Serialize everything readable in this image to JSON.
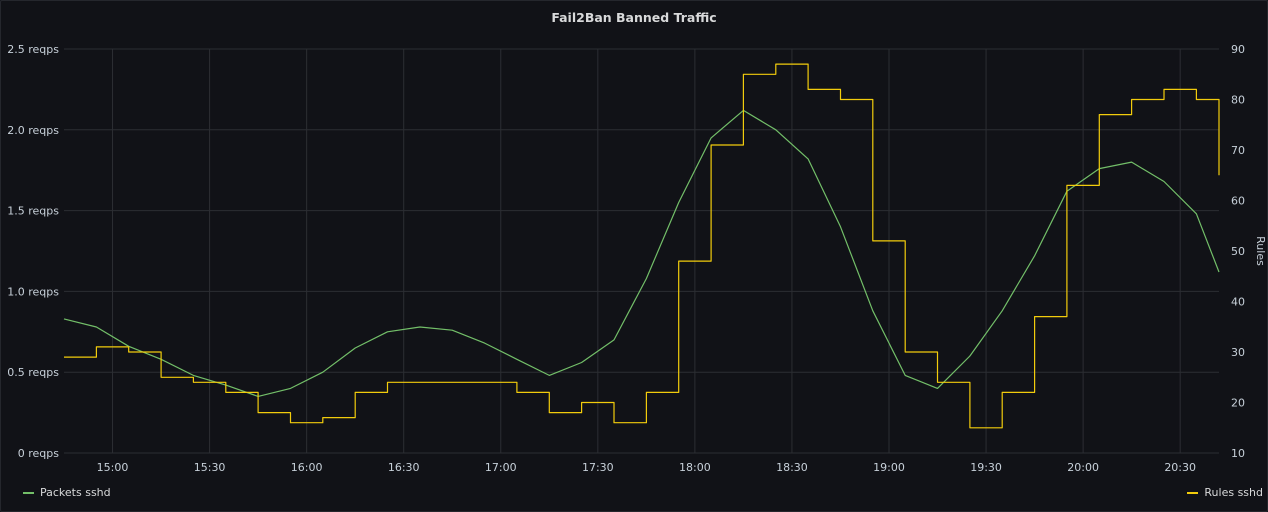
{
  "panel": {
    "title": "Fail2Ban Banned Traffic"
  },
  "chart_data": {
    "type": "line",
    "title": "Fail2Ban Banned Traffic",
    "xlabel": "",
    "ylabel_left": "",
    "ylabel_right": "Rules",
    "x_ticks": [
      "15:00",
      "15:30",
      "16:00",
      "16:30",
      "17:00",
      "17:30",
      "18:00",
      "18:30",
      "19:00",
      "19:30",
      "20:00",
      "20:30"
    ],
    "x_range": [
      "14:45",
      "20:42"
    ],
    "y_left_ticks": [
      "0 reqps",
      "0.5 reqps",
      "1.0 reqps",
      "1.5 reqps",
      "2.0 reqps",
      "2.5 reqps"
    ],
    "y_left_range": [
      0,
      2.5
    ],
    "y_right_ticks": [
      "10",
      "20",
      "30",
      "40",
      "50",
      "60",
      "70",
      "80",
      "90"
    ],
    "y_right_range": [
      10,
      90
    ],
    "grid": true,
    "legend": "bottom",
    "series": [
      {
        "name": "Packets sshd",
        "axis": "left",
        "color": "#73bf69",
        "x": [
          "14:45",
          "14:55",
          "15:05",
          "15:15",
          "15:25",
          "15:35",
          "15:45",
          "15:55",
          "16:05",
          "16:15",
          "16:25",
          "16:35",
          "16:45",
          "16:55",
          "17:05",
          "17:15",
          "17:25",
          "17:35",
          "17:45",
          "17:55",
          "18:05",
          "18:15",
          "18:25",
          "18:35",
          "18:45",
          "18:55",
          "19:05",
          "19:15",
          "19:25",
          "19:35",
          "19:45",
          "19:55",
          "20:05",
          "20:15",
          "20:25",
          "20:35",
          "20:42"
        ],
        "values": [
          0.83,
          0.78,
          0.66,
          0.58,
          0.48,
          0.42,
          0.35,
          0.4,
          0.5,
          0.65,
          0.75,
          0.78,
          0.76,
          0.68,
          0.58,
          0.48,
          0.56,
          0.7,
          1.08,
          1.55,
          1.95,
          2.12,
          2.0,
          1.82,
          1.4,
          0.88,
          0.48,
          0.4,
          0.6,
          0.88,
          1.22,
          1.62,
          1.76,
          1.8,
          1.68,
          1.48,
          1.12
        ]
      },
      {
        "name": "Rules sshd",
        "axis": "right",
        "color": "#f2cc0c",
        "x": [
          "14:45",
          "14:55",
          "15:05",
          "15:15",
          "15:25",
          "15:35",
          "15:45",
          "15:55",
          "16:05",
          "16:15",
          "16:25",
          "16:35",
          "16:45",
          "16:55",
          "17:05",
          "17:15",
          "17:25",
          "17:35",
          "17:45",
          "17:55",
          "18:05",
          "18:15",
          "18:25",
          "18:35",
          "18:45",
          "18:55",
          "19:05",
          "19:15",
          "19:25",
          "19:35",
          "19:45",
          "19:55",
          "20:05",
          "20:15",
          "20:25",
          "20:35",
          "20:42"
        ],
        "values": [
          29,
          31,
          30,
          25,
          24,
          22,
          18,
          16,
          17,
          22,
          24,
          24,
          24,
          24,
          22,
          18,
          20,
          16,
          22,
          48,
          71,
          85,
          87,
          82,
          80,
          52,
          30,
          24,
          15,
          22,
          37,
          63,
          77,
          80,
          82,
          80,
          65
        ]
      }
    ]
  },
  "legend": {
    "left_label": "Packets sshd",
    "right_label": "Rules sshd"
  }
}
